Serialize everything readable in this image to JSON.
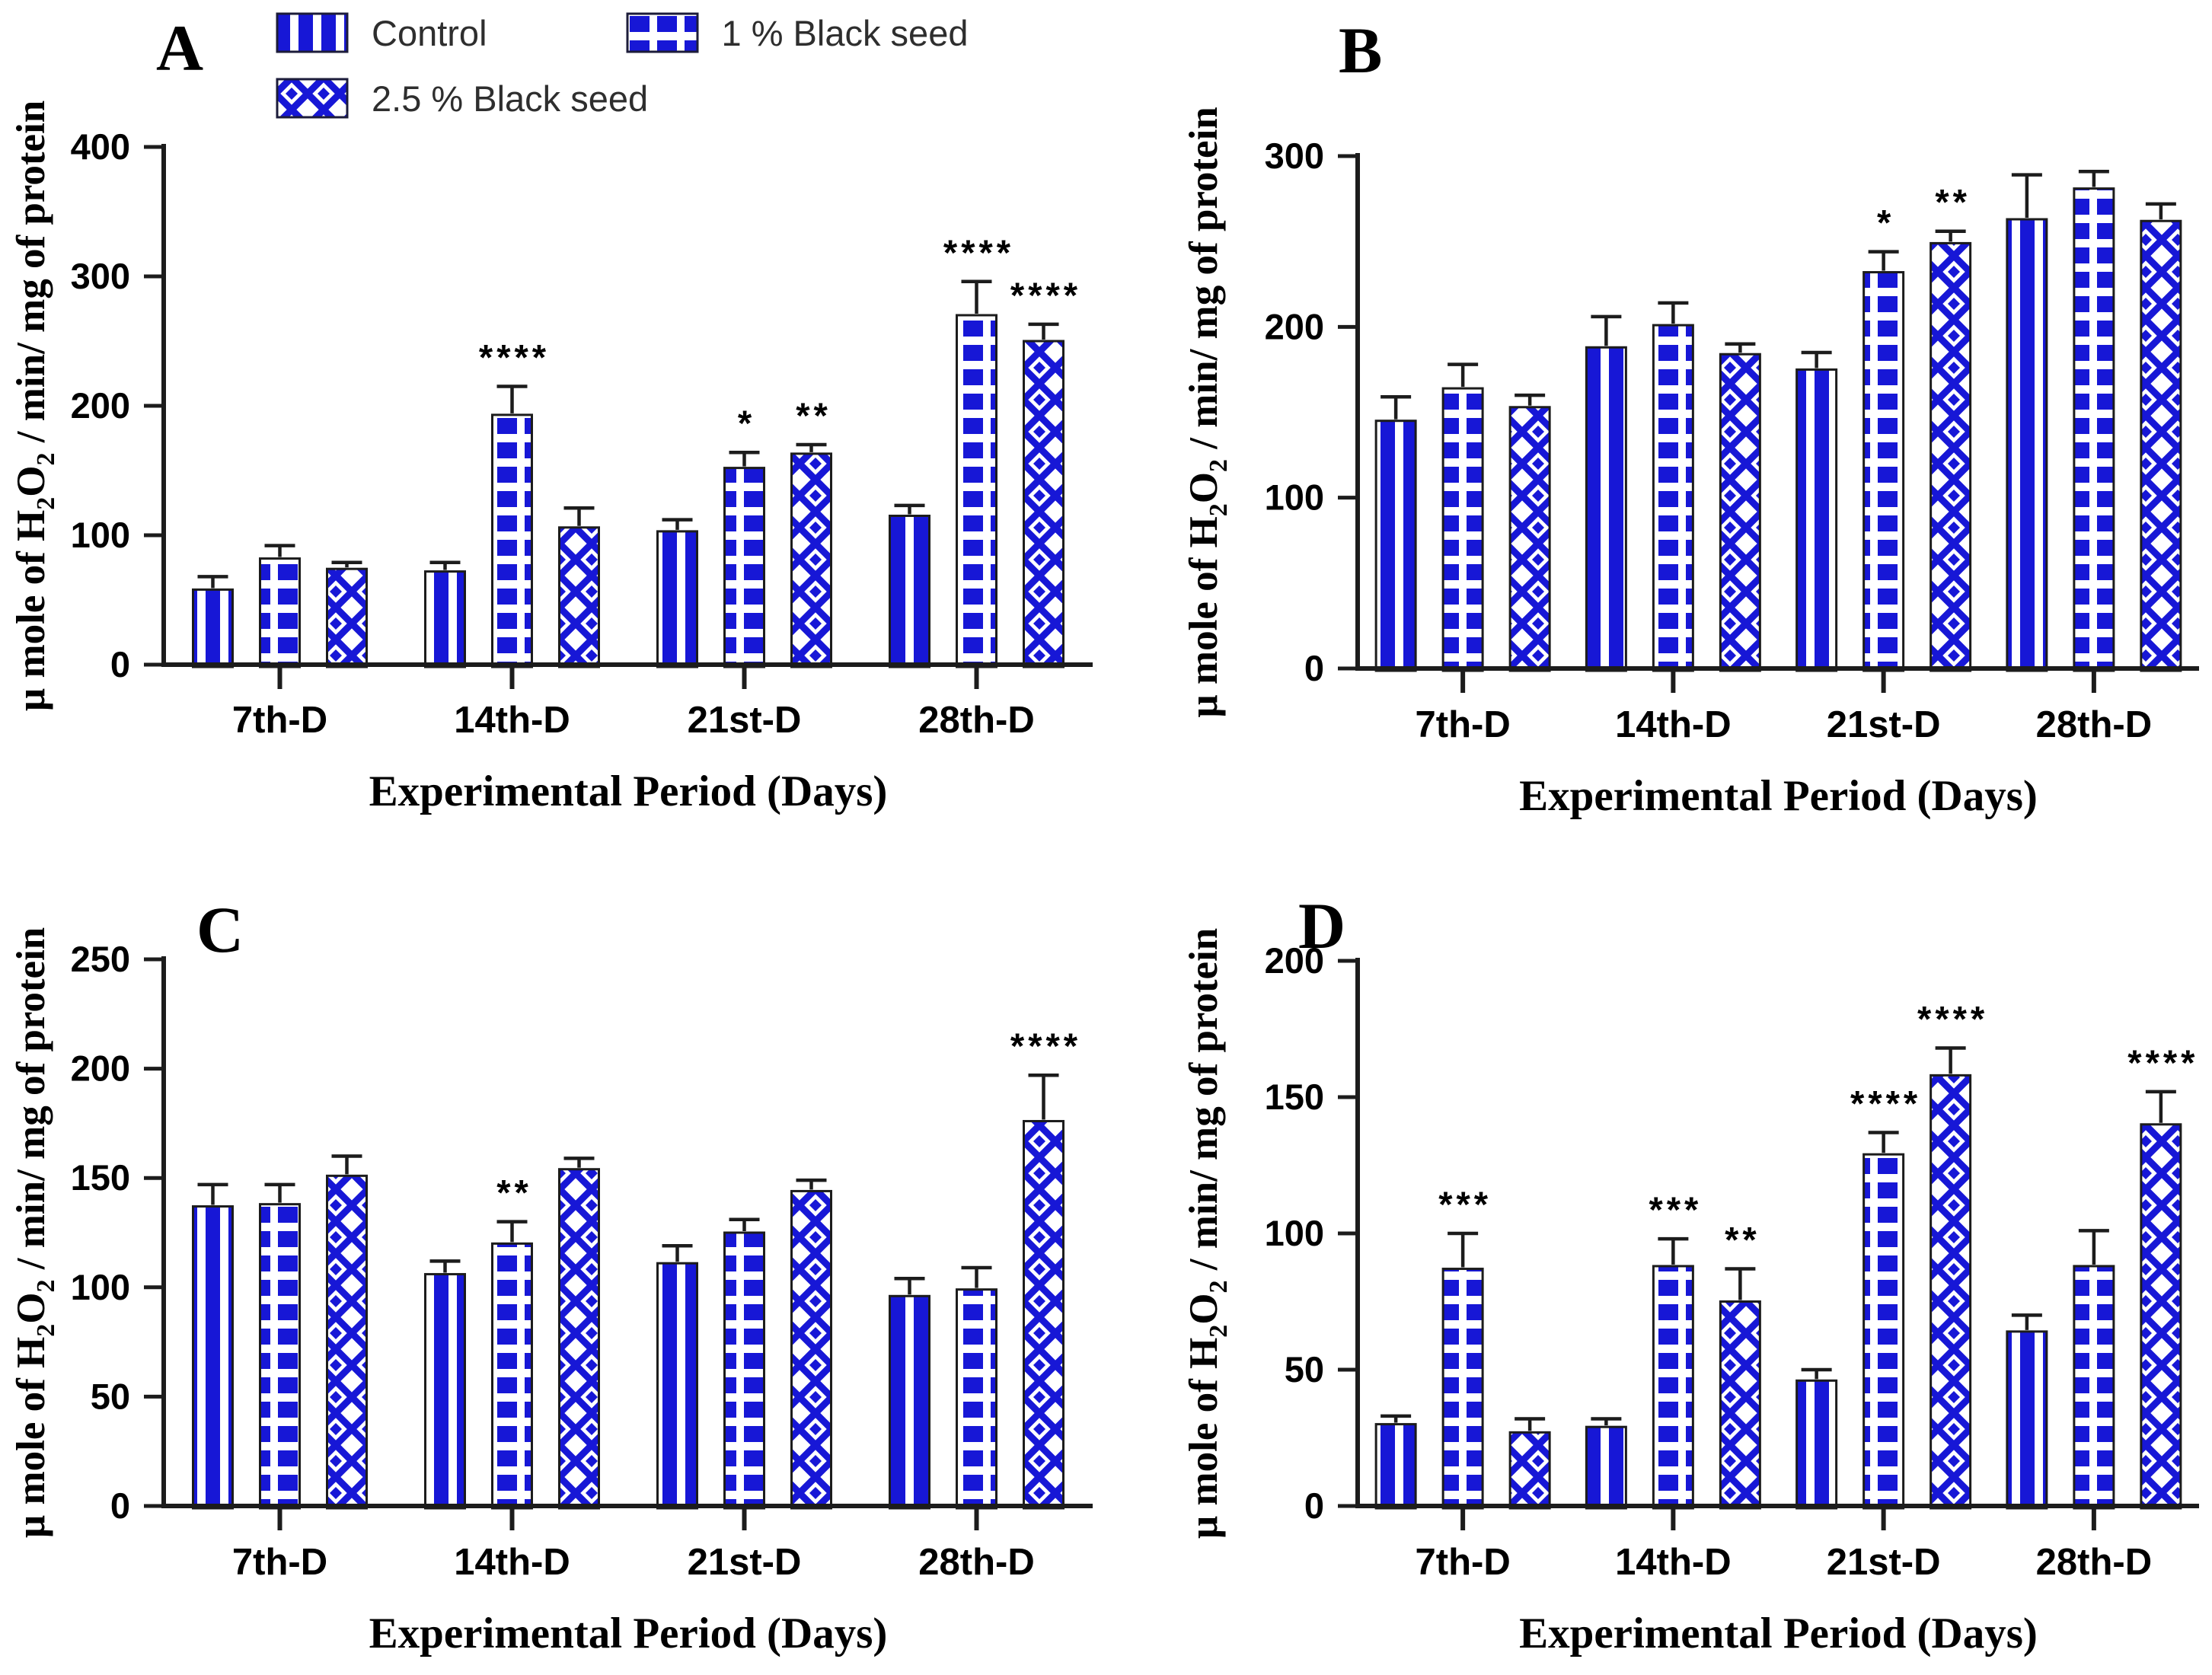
{
  "figure": {
    "x_axis_title": "Experimental Period (Days)",
    "y_axis_title_plain": "µ mole of H2O2 / min/ mg of protein",
    "y_axis_title_parts": [
      {
        "text": "µ mole of H"
      },
      {
        "text": "2",
        "sub": true
      },
      {
        "text": "O"
      },
      {
        "text": "2",
        "sub": true
      },
      {
        "text": " / min/ mg of protein"
      }
    ]
  },
  "legend": {
    "position": "top-left-above-panel-A",
    "items": [
      {
        "label": "Control",
        "pattern": "control",
        "icon": "vertical-stripes-swatch-icon"
      },
      {
        "label": "1 % Black seed",
        "pattern": "seed1",
        "icon": "square-grid-swatch-icon"
      },
      {
        "label": "2.5 % Black seed",
        "pattern": "seed25",
        "icon": "diamond-lattice-swatch-icon"
      }
    ]
  },
  "colors": {
    "bar_blue": "#1717D6",
    "axis": "#1c1c1c",
    "text": "#000000",
    "legend_text": "#2e2e2e",
    "background": "#ffffff"
  },
  "chart_data": [
    {
      "panel": "A",
      "type": "bar",
      "categories": [
        "7th-D",
        "14th-D",
        "21st-D",
        "28th-D"
      ],
      "xlabel": "Experimental Period (Days)",
      "ylabel": "µ mole of H2O2 / min/ mg of protein",
      "ylim": [
        0,
        400
      ],
      "yticks": [
        0,
        100,
        200,
        300,
        400
      ],
      "grid": false,
      "series": [
        {
          "name": "Control",
          "pattern": "control",
          "values": [
            58,
            72,
            103,
            115
          ],
          "errors": [
            10,
            7,
            9,
            8
          ],
          "sig": [
            "",
            "",
            "",
            ""
          ]
        },
        {
          "name": "1 % Black seed",
          "pattern": "seed1",
          "values": [
            82,
            193,
            152,
            270
          ],
          "errors": [
            10,
            22,
            12,
            26
          ],
          "sig": [
            "",
            "****",
            "*",
            "****"
          ]
        },
        {
          "name": "2.5 % Black seed",
          "pattern": "seed25",
          "values": [
            74,
            106,
            163,
            250
          ],
          "errors": [
            5,
            15,
            7,
            13
          ],
          "sig": [
            "",
            "",
            "**",
            "****"
          ]
        }
      ]
    },
    {
      "panel": "B",
      "type": "bar",
      "categories": [
        "7th-D",
        "14th-D",
        "21st-D",
        "28th-D"
      ],
      "xlabel": "Experimental Period (Days)",
      "ylabel": "µ mole of H2O2 / min/ mg of protein",
      "ylim": [
        0,
        300
      ],
      "yticks": [
        0,
        100,
        200,
        300
      ],
      "grid": false,
      "series": [
        {
          "name": "Control",
          "pattern": "control",
          "values": [
            145,
            188,
            175,
            263
          ],
          "errors": [
            14,
            18,
            10,
            26
          ],
          "sig": [
            "",
            "",
            "",
            ""
          ]
        },
        {
          "name": "1 % Black seed",
          "pattern": "seed1",
          "values": [
            164,
            201,
            232,
            281
          ],
          "errors": [
            14,
            13,
            12,
            10
          ],
          "sig": [
            "",
            "",
            "*",
            ""
          ]
        },
        {
          "name": "2.5 % Black seed",
          "pattern": "seed25",
          "values": [
            153,
            184,
            249,
            262
          ],
          "errors": [
            7,
            6,
            7,
            10
          ],
          "sig": [
            "",
            "",
            "**",
            ""
          ]
        }
      ]
    },
    {
      "panel": "C",
      "type": "bar",
      "categories": [
        "7th-D",
        "14th-D",
        "21st-D",
        "28th-D"
      ],
      "xlabel": "Experimental Period (Days)",
      "ylabel": "µ mole of H2O2 / min/ mg of protein",
      "ylim": [
        0,
        250
      ],
      "yticks": [
        0,
        50,
        100,
        150,
        200,
        250
      ],
      "grid": false,
      "series": [
        {
          "name": "Control",
          "pattern": "control",
          "values": [
            137,
            106,
            111,
            96
          ],
          "errors": [
            10,
            6,
            8,
            8
          ],
          "sig": [
            "",
            "",
            "",
            ""
          ]
        },
        {
          "name": "1 % Black seed",
          "pattern": "seed1",
          "values": [
            138,
            120,
            125,
            99
          ],
          "errors": [
            9,
            10,
            6,
            10
          ],
          "sig": [
            "",
            "**",
            "",
            ""
          ]
        },
        {
          "name": "2.5 % Black seed",
          "pattern": "seed25",
          "values": [
            151,
            154,
            144,
            176
          ],
          "errors": [
            9,
            5,
            5,
            21
          ],
          "sig": [
            "",
            "",
            "",
            "****"
          ]
        }
      ]
    },
    {
      "panel": "D",
      "type": "bar",
      "categories": [
        "7th-D",
        "14th-D",
        "21st-D",
        "28th-D"
      ],
      "xlabel": "Experimental Period (Days)",
      "ylabel": "µ mole of H2O2 / min/ mg of protein",
      "ylim": [
        0,
        200
      ],
      "yticks": [
        0,
        50,
        100,
        150,
        200
      ],
      "grid": false,
      "series": [
        {
          "name": "Control",
          "pattern": "control",
          "values": [
            30,
            29,
            46,
            64
          ],
          "errors": [
            3,
            3,
            4,
            6
          ],
          "sig": [
            "",
            "",
            "",
            ""
          ]
        },
        {
          "name": "1 % Black seed",
          "pattern": "seed1",
          "values": [
            87,
            88,
            129,
            88
          ],
          "errors": [
            13,
            10,
            8,
            13
          ],
          "sig": [
            "***",
            "***",
            "****",
            ""
          ]
        },
        {
          "name": "2.5 % Black seed",
          "pattern": "seed25",
          "values": [
            27,
            75,
            158,
            140
          ],
          "errors": [
            5,
            12,
            10,
            12
          ],
          "sig": [
            "",
            "**",
            "****",
            "****"
          ]
        }
      ]
    }
  ]
}
